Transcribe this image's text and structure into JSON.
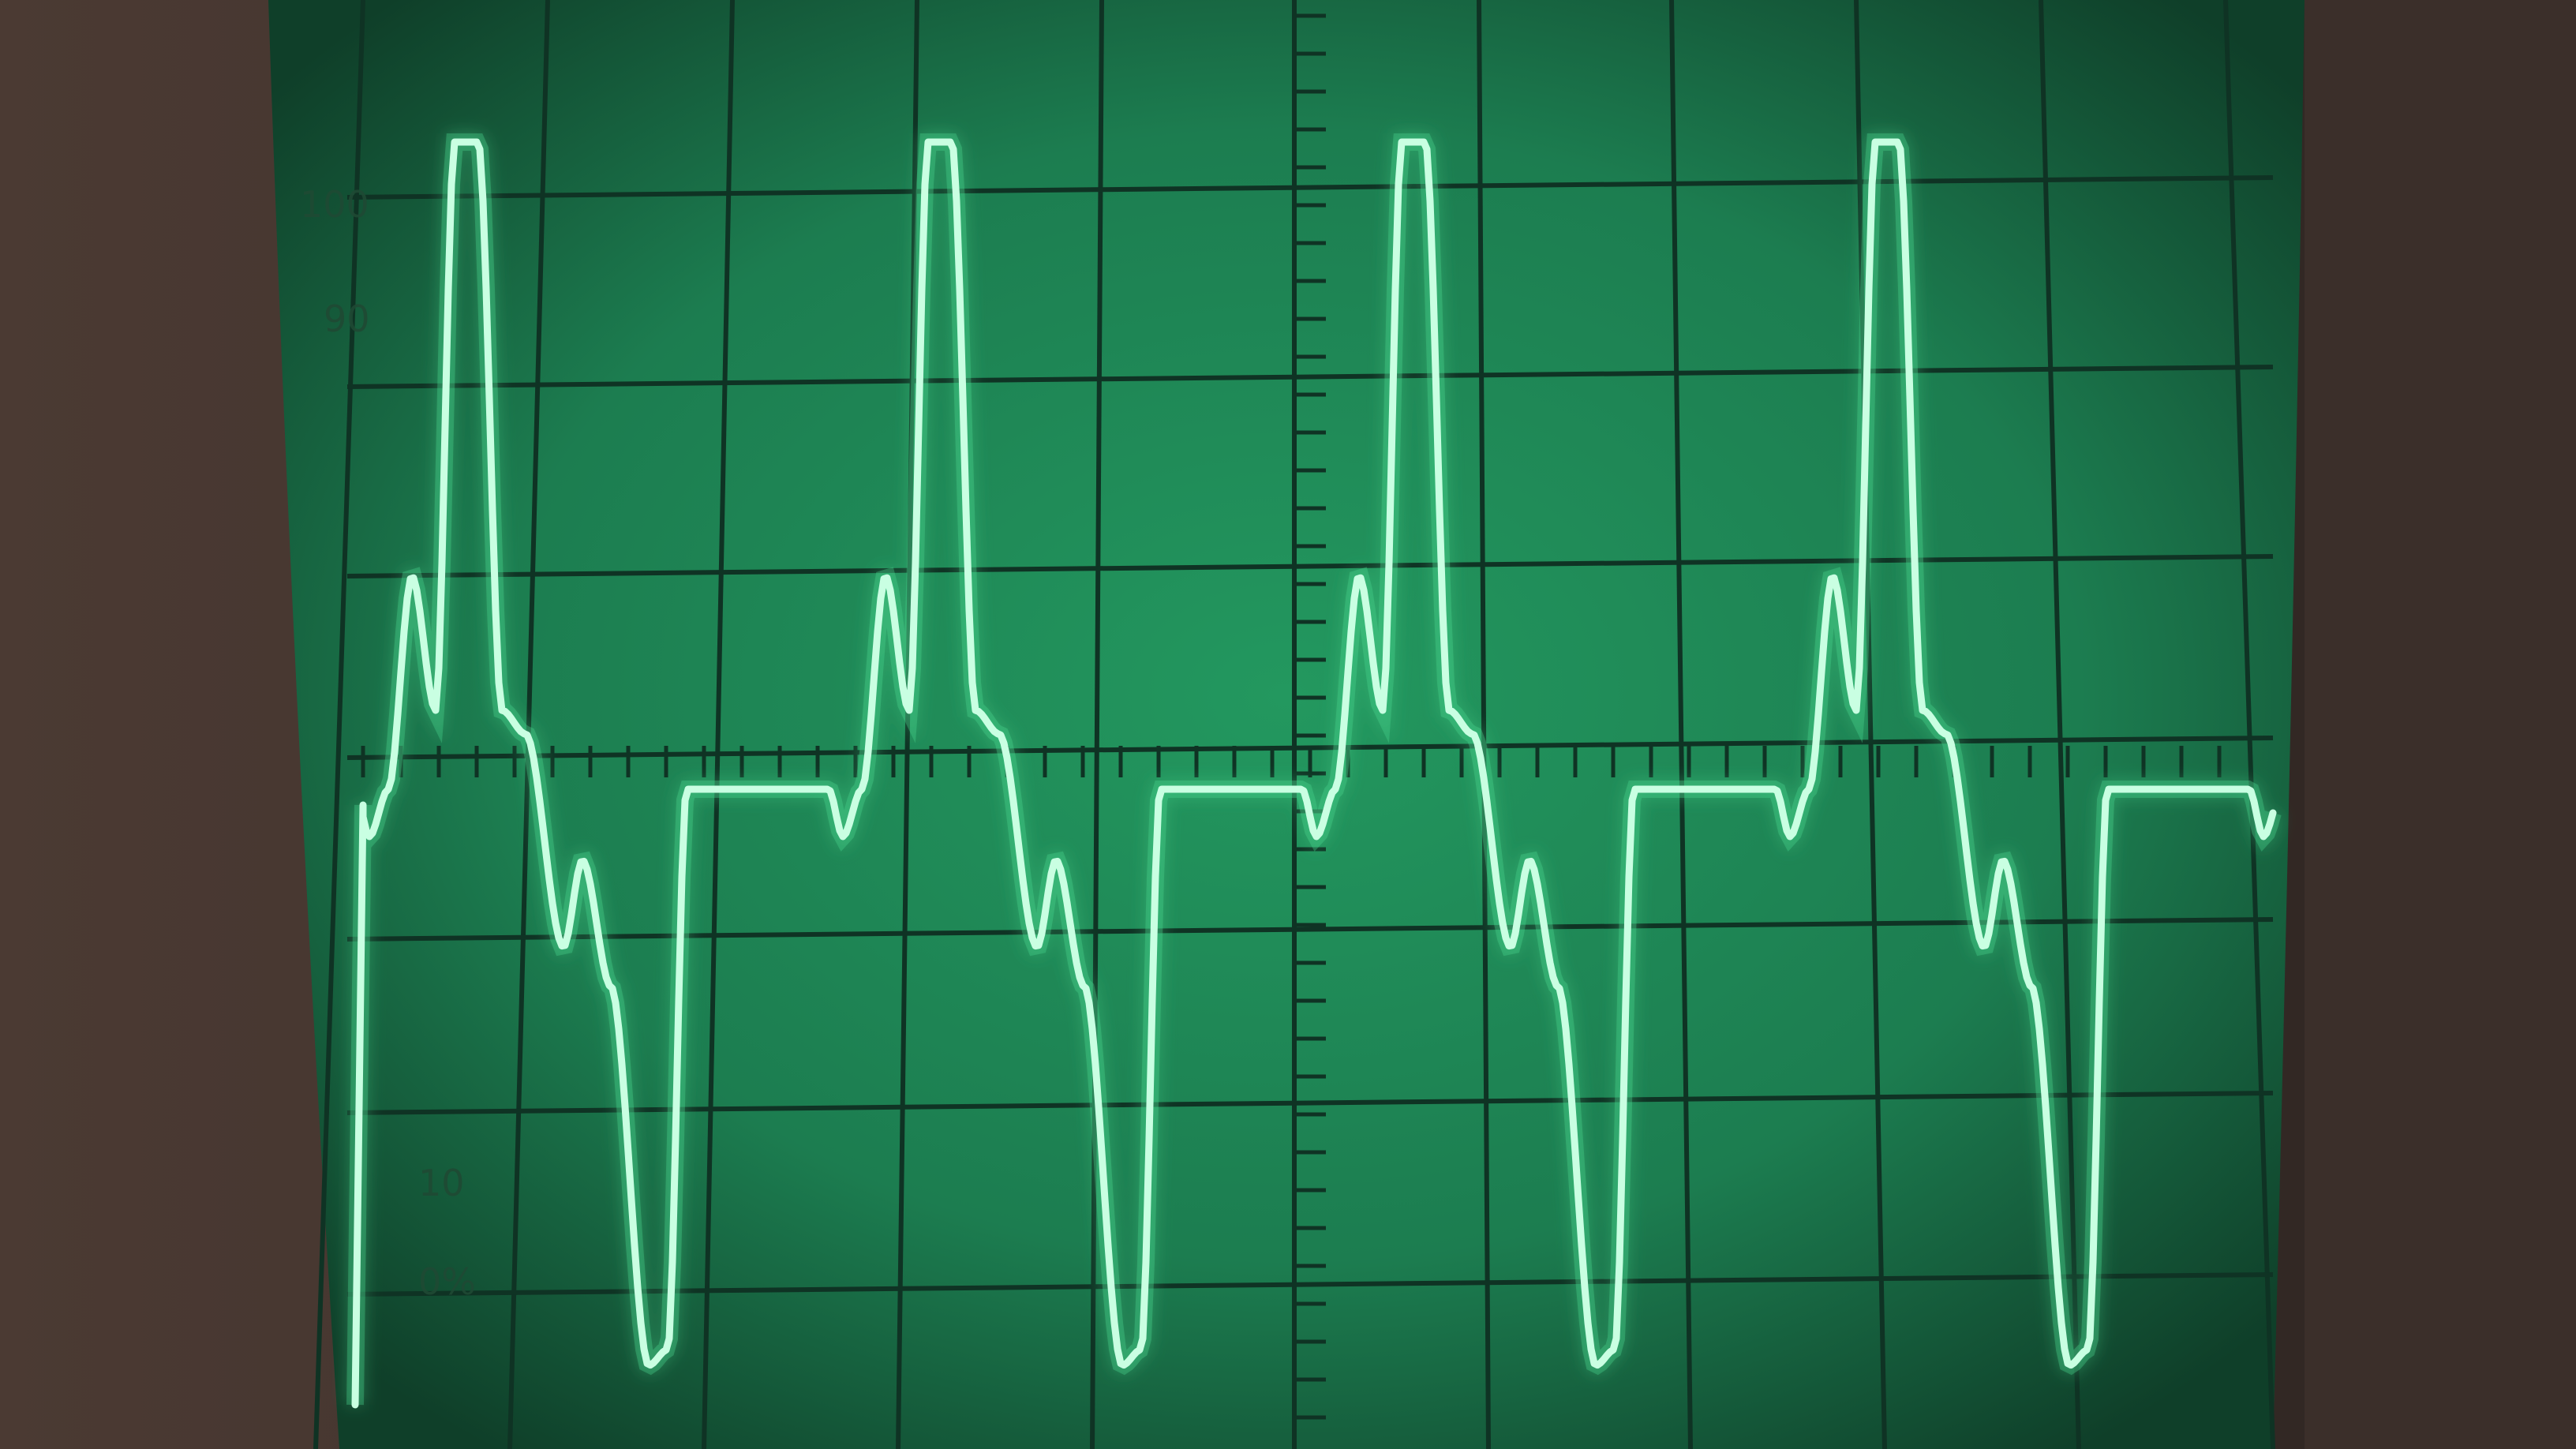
{
  "screen": {
    "phosphor_color": "#8dffc4",
    "screen_color": "#1f8a5a",
    "grid_color": "#0f3324",
    "bezel_color": "#3a2e28"
  },
  "scale_labels": {
    "top": "100",
    "upper": "90",
    "lower": "10",
    "bottom": "0%"
  },
  "trace": {
    "description_visible": false,
    "cycles": 4
  }
}
